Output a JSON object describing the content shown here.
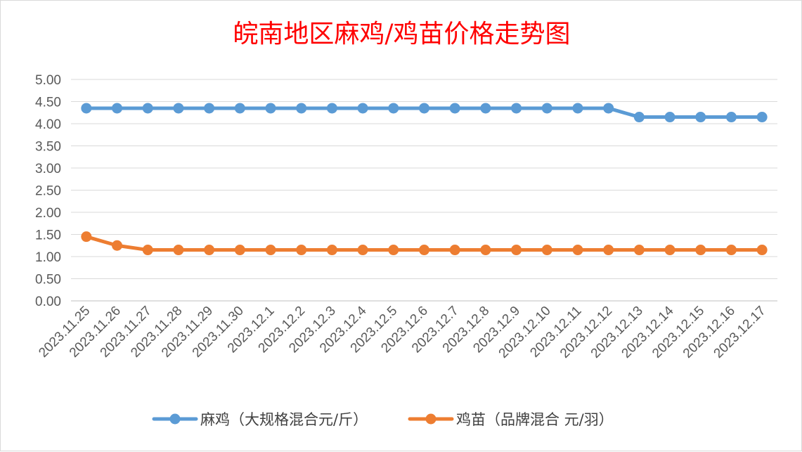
{
  "chart_data": {
    "type": "line",
    "title": "皖南地区麻鸡/鸡苗价格走势图",
    "xlabel": "",
    "ylabel": "",
    "ylim": [
      0,
      5
    ],
    "yticks": [
      "0.00",
      "0.50",
      "1.00",
      "1.50",
      "2.00",
      "2.50",
      "3.00",
      "3.50",
      "4.00",
      "4.50",
      "5.00"
    ],
    "grid": true,
    "legend_position": "bottom",
    "categories": [
      "2023.11.25",
      "2023.11.26",
      "2023.11.27",
      "2023.11.28",
      "2023.11.29",
      "2023.11.30",
      "2023.12.1",
      "2023.12.2",
      "2023.12.3",
      "2023.12.4",
      "2023.12.5",
      "2023.12.6",
      "2023.12.7",
      "2023.12.8",
      "2023.12.9",
      "2023.12.10",
      "2023.12.11",
      "2023.12.12",
      "2023.12.13",
      "2023.12.14",
      "2023.12.15",
      "2023.12.16",
      "2023.12.17"
    ],
    "series": [
      {
        "name": "麻鸡（大规格混合元/斤）",
        "color": "#5b9bd5",
        "values": [
          4.35,
          4.35,
          4.35,
          4.35,
          4.35,
          4.35,
          4.35,
          4.35,
          4.35,
          4.35,
          4.35,
          4.35,
          4.35,
          4.35,
          4.35,
          4.35,
          4.35,
          4.35,
          4.15,
          4.15,
          4.15,
          4.15,
          4.15
        ]
      },
      {
        "name": "鸡苗（品牌混合 元/羽）",
        "color": "#ed7d31",
        "values": [
          1.45,
          1.25,
          1.15,
          1.15,
          1.15,
          1.15,
          1.15,
          1.15,
          1.15,
          1.15,
          1.15,
          1.15,
          1.15,
          1.15,
          1.15,
          1.15,
          1.15,
          1.15,
          1.15,
          1.15,
          1.15,
          1.15,
          1.15
        ]
      }
    ]
  }
}
